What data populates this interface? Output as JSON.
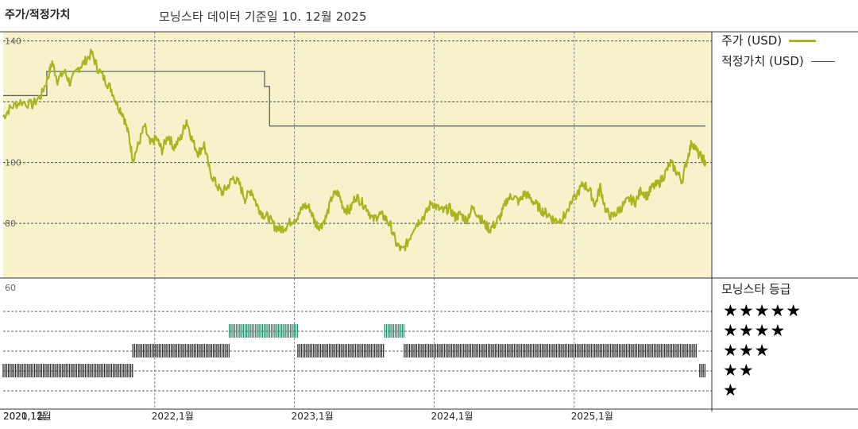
{
  "header": {
    "left_title": "주가/적정가치",
    "subtitle": "모닝스타 데이터 기준일 10. 12월 2025"
  },
  "legend": {
    "price_label": "주가 (USD)",
    "fair_value_label": "적정가치 (USD)",
    "price_color": "#a8b51e",
    "fair_value_color": "#555555"
  },
  "rating_panel": {
    "title": "모닝스타 등급",
    "stars": [
      "★★★★★",
      "★★★★",
      "★★★",
      "★★",
      "★"
    ]
  },
  "chart_data": {
    "type": "line",
    "price_axis": {
      "ticks": [
        80,
        100,
        140
      ],
      "ylim": [
        62,
        143
      ],
      "gridlines": [
        80,
        100,
        120,
        140
      ]
    },
    "x_tick_labels": [
      "2020,12월",
      "2021,1월",
      "2022,1월",
      "2023,1월",
      "2024,1월",
      "2025,1월"
    ],
    "x_ticks_dates": [
      "2020-12-01",
      "2021-01-01",
      "2022-01-01",
      "2023-01-01",
      "2024-01-01",
      "2025-01-01"
    ],
    "xlim": [
      "2020-12-01",
      "2025-12-10"
    ],
    "series": [
      {
        "name": "주가 (USD)",
        "points": [
          [
            "2020-12-01",
            115
          ],
          [
            "2020-12-20",
            118
          ],
          [
            "2021-01-15",
            120
          ],
          [
            "2021-02-15",
            119
          ],
          [
            "2021-03-10",
            122
          ],
          [
            "2021-03-28",
            128
          ],
          [
            "2021-04-08",
            133
          ],
          [
            "2021-04-22",
            127
          ],
          [
            "2021-05-10",
            130
          ],
          [
            "2021-05-25",
            126
          ],
          [
            "2021-06-15",
            131
          ],
          [
            "2021-07-01",
            133
          ],
          [
            "2021-07-20",
            136
          ],
          [
            "2021-08-05",
            131
          ],
          [
            "2021-08-25",
            127
          ],
          [
            "2021-09-10",
            124
          ],
          [
            "2021-09-25",
            119
          ],
          [
            "2021-10-10",
            116
          ],
          [
            "2021-10-25",
            109
          ],
          [
            "2021-11-05",
            101
          ],
          [
            "2021-11-20",
            106
          ],
          [
            "2021-12-05",
            112
          ],
          [
            "2021-12-20",
            106
          ],
          [
            "2022-01-05",
            108
          ],
          [
            "2022-01-20",
            104
          ],
          [
            "2022-02-05",
            109
          ],
          [
            "2022-02-20",
            105
          ],
          [
            "2022-03-10",
            108
          ],
          [
            "2022-03-25",
            114
          ],
          [
            "2022-04-10",
            107
          ],
          [
            "2022-04-25",
            103
          ],
          [
            "2022-05-10",
            106
          ],
          [
            "2022-05-25",
            97
          ],
          [
            "2022-06-10",
            93
          ],
          [
            "2022-06-25",
            90
          ],
          [
            "2022-07-10",
            92
          ],
          [
            "2022-07-25",
            95
          ],
          [
            "2022-08-10",
            93
          ],
          [
            "2022-08-25",
            88
          ],
          [
            "2022-09-10",
            91
          ],
          [
            "2022-09-25",
            86
          ],
          [
            "2022-10-10",
            83
          ],
          [
            "2022-10-25",
            82
          ],
          [
            "2022-11-10",
            79
          ],
          [
            "2022-11-25",
            78
          ],
          [
            "2022-12-10",
            79
          ],
          [
            "2022-12-25",
            81
          ],
          [
            "2023-01-10",
            82
          ],
          [
            "2023-01-25",
            86
          ],
          [
            "2023-02-10",
            85
          ],
          [
            "2023-02-25",
            80
          ],
          [
            "2023-03-10",
            79
          ],
          [
            "2023-03-25",
            82
          ],
          [
            "2023-04-10",
            89
          ],
          [
            "2023-04-25",
            90
          ],
          [
            "2023-05-10",
            85
          ],
          [
            "2023-05-25",
            84
          ],
          [
            "2023-06-10",
            89
          ],
          [
            "2023-06-25",
            87
          ],
          [
            "2023-07-10",
            85
          ],
          [
            "2023-07-25",
            81
          ],
          [
            "2023-08-10",
            83
          ],
          [
            "2023-08-25",
            82
          ],
          [
            "2023-09-10",
            79
          ],
          [
            "2023-09-25",
            73
          ],
          [
            "2023-10-10",
            71
          ],
          [
            "2023-10-25",
            74
          ],
          [
            "2023-11-10",
            79
          ],
          [
            "2023-11-25",
            81
          ],
          [
            "2023-12-10",
            83
          ],
          [
            "2023-12-25",
            87
          ],
          [
            "2024-01-10",
            85
          ],
          [
            "2024-01-25",
            84
          ],
          [
            "2024-02-10",
            85
          ],
          [
            "2024-02-25",
            82
          ],
          [
            "2024-03-10",
            83
          ],
          [
            "2024-03-25",
            81
          ],
          [
            "2024-04-10",
            85
          ],
          [
            "2024-04-25",
            83
          ],
          [
            "2024-05-10",
            80
          ],
          [
            "2024-05-25",
            78
          ],
          [
            "2024-06-10",
            80
          ],
          [
            "2024-06-25",
            83
          ],
          [
            "2024-07-10",
            88
          ],
          [
            "2024-07-25",
            89
          ],
          [
            "2024-08-10",
            87
          ],
          [
            "2024-08-25",
            90
          ],
          [
            "2024-09-10",
            88
          ],
          [
            "2024-09-25",
            86
          ],
          [
            "2024-10-10",
            84
          ],
          [
            "2024-10-25",
            83
          ],
          [
            "2024-11-10",
            81
          ],
          [
            "2024-11-25",
            81
          ],
          [
            "2024-12-10",
            83
          ],
          [
            "2025-01-10",
            90
          ],
          [
            "2025-01-25",
            93
          ],
          [
            "2025-02-10",
            91
          ],
          [
            "2025-02-25",
            86
          ],
          [
            "2025-03-10",
            92
          ],
          [
            "2025-03-25",
            84
          ],
          [
            "2025-04-10",
            82
          ],
          [
            "2025-04-25",
            84
          ],
          [
            "2025-05-10",
            86
          ],
          [
            "2025-05-25",
            88
          ],
          [
            "2025-06-10",
            87
          ],
          [
            "2025-06-25",
            91
          ],
          [
            "2025-07-10",
            89
          ],
          [
            "2025-07-25",
            92
          ],
          [
            "2025-08-10",
            93
          ],
          [
            "2025-08-25",
            96
          ],
          [
            "2025-09-10",
            100
          ],
          [
            "2025-09-25",
            97
          ],
          [
            "2025-10-10",
            94
          ],
          [
            "2025-10-25",
            102
          ],
          [
            "2025-11-05",
            107
          ],
          [
            "2025-11-20",
            103
          ],
          [
            "2025-12-05",
            101
          ],
          [
            "2025-12-10",
            99
          ]
        ]
      },
      {
        "name": "적정가치 (USD)",
        "step": true,
        "points": [
          [
            "2020-12-01",
            122
          ],
          [
            "2021-03-25",
            122
          ],
          [
            "2021-03-25",
            130
          ],
          [
            "2022-10-15",
            130
          ],
          [
            "2022-10-15",
            125
          ],
          [
            "2022-10-28",
            125
          ],
          [
            "2022-10-28",
            112
          ],
          [
            "2025-12-10",
            112
          ]
        ]
      }
    ],
    "rating_series": {
      "name": "모닝스타 등급",
      "periods": [
        {
          "start": "2020-12-01",
          "end": "2021-11-05",
          "stars": 2,
          "color": "#333333"
        },
        {
          "start": "2021-11-05",
          "end": "2022-07-15",
          "stars": 3,
          "color": "#333333"
        },
        {
          "start": "2022-07-15",
          "end": "2023-01-10",
          "stars": 4,
          "color": "#2e8b6a"
        },
        {
          "start": "2023-01-10",
          "end": "2023-08-25",
          "stars": 3,
          "color": "#333333"
        },
        {
          "start": "2023-08-25",
          "end": "2023-10-15",
          "stars": 4,
          "color": "#2e8b6a"
        },
        {
          "start": "2023-10-15",
          "end": "2025-11-20",
          "stars": 3,
          "color": "#333333"
        },
        {
          "start": "2025-11-25",
          "end": "2025-12-10",
          "stars": 2,
          "color": "#333333"
        }
      ]
    }
  }
}
